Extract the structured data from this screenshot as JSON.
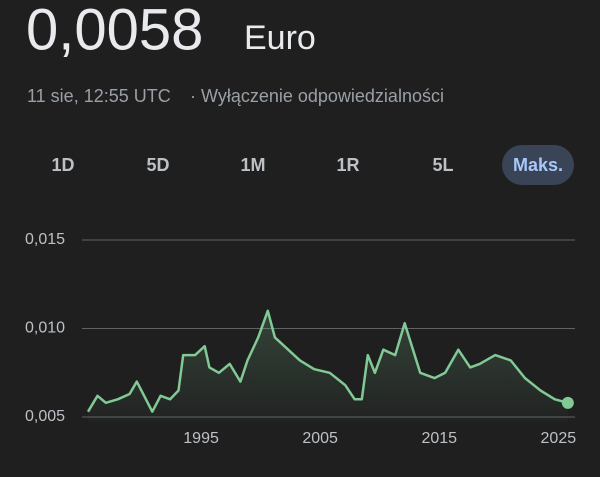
{
  "header": {
    "price": "0,0058",
    "currency": "Euro",
    "timestamp": "11 sie, 12:55 UTC",
    "separator": "·",
    "disclaimer": "Wyłączenie odpowiedzialności"
  },
  "ranges": [
    {
      "label": "1D"
    },
    {
      "label": "5D"
    },
    {
      "label": "1M"
    },
    {
      "label": "1R"
    },
    {
      "label": "5L"
    },
    {
      "label": "Maks.",
      "selected": true
    }
  ],
  "chart_data": {
    "type": "line",
    "color": "#81c995",
    "grid": true,
    "x": [
      1985.5,
      1986.3,
      1987.0,
      1988.0,
      1989.0,
      1989.6,
      1990.9,
      1991.6,
      1992.4,
      1993.1,
      1993.5,
      1994.5,
      1995.3,
      1995.7,
      1996.5,
      1997.4,
      1998.3,
      1998.9,
      1999.8,
      2000.6,
      2001.2,
      2002.0,
      2003.3,
      2004.5,
      2005.8,
      2007.1,
      2007.9,
      2008.5,
      2009.0,
      2009.6,
      2010.3,
      2011.3,
      2012.1,
      2012.7,
      2013.4,
      2014.6,
      2015.5,
      2016.6,
      2017.6,
      2018.4,
      2019.7,
      2021.0,
      2022.2,
      2023.5,
      2024.7,
      2025.8
    ],
    "values": [
      0.0053,
      0.0062,
      0.0058,
      0.006,
      0.0063,
      0.007,
      0.0053,
      0.0062,
      0.006,
      0.0065,
      0.0085,
      0.0085,
      0.009,
      0.0078,
      0.0075,
      0.008,
      0.007,
      0.0082,
      0.0095,
      0.011,
      0.0095,
      0.009,
      0.0082,
      0.0077,
      0.0075,
      0.0068,
      0.006,
      0.006,
      0.0085,
      0.0075,
      0.0088,
      0.0085,
      0.0103,
      0.009,
      0.0075,
      0.0072,
      0.0075,
      0.0088,
      0.0078,
      0.008,
      0.0085,
      0.0082,
      0.0072,
      0.0065,
      0.006,
      0.0058
    ],
    "xlim": [
      1985,
      2026.4
    ],
    "xticks": [
      1995,
      2005,
      2015,
      2025
    ],
    "ylim": [
      0.0047,
      0.0155
    ],
    "yticks": [
      {
        "value": 0.005,
        "label": "0,005"
      },
      {
        "value": 0.01,
        "label": "0,010"
      },
      {
        "value": 0.015,
        "label": "0,015"
      }
    ]
  }
}
